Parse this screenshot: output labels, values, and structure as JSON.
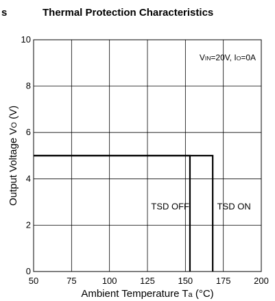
{
  "header": {
    "lead_fragment": "s",
    "title": "Thermal Protection Characteristics"
  },
  "chart_data": {
    "type": "line",
    "title": "Thermal Protection Characteristics",
    "xlabel": {
      "prefix": "Ambient Temperature T",
      "sub": "a",
      "suffix": " (°C)"
    },
    "ylabel": {
      "prefix": "Output Voltage V",
      "sub": "O",
      "suffix": " (V)"
    },
    "xlim": [
      50,
      200
    ],
    "ylim": [
      0,
      10
    ],
    "xticks": [
      50,
      75,
      100,
      125,
      150,
      175,
      200
    ],
    "yticks": [
      0,
      2,
      4,
      6,
      8,
      10
    ],
    "grid": true,
    "legend": "none",
    "condition": {
      "v": "V",
      "v_sub": "IN",
      "v_val": "=20V, ",
      "i": "I",
      "i_sub": "O",
      "i_val": "=0A"
    },
    "series": [
      {
        "label": "TSD OFF",
        "points": [
          [
            50,
            5.0
          ],
          [
            153,
            5.0
          ],
          [
            153,
            0
          ]
        ]
      },
      {
        "label": "TSD ON",
        "points": [
          [
            50,
            5.0
          ],
          [
            168,
            5.0
          ],
          [
            168,
            0
          ]
        ]
      }
    ],
    "annotations": [
      {
        "text": "TSD OFF",
        "x": 140,
        "y": 2.8
      },
      {
        "text": "TSD ON",
        "x": 182,
        "y": 2.8
      }
    ],
    "colors": {
      "grid": "#000000",
      "line": "#000000"
    }
  }
}
